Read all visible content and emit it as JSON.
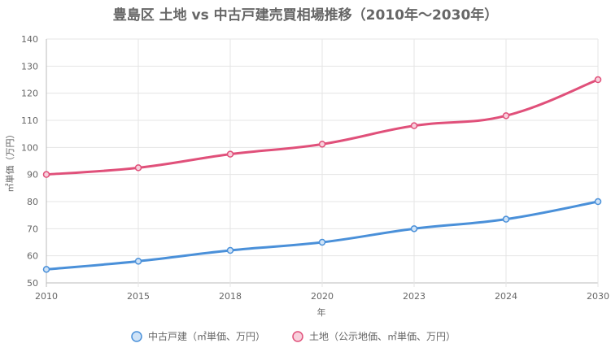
{
  "chart_data": {
    "type": "line",
    "title": "豊島区 土地 vs 中古戸建売買相場推移（2010年〜2030年）",
    "xlabel": "年",
    "ylabel": "㎡単価（万円）",
    "x": [
      "2010",
      "2015",
      "2018",
      "2020",
      "2023",
      "2024",
      "2030"
    ],
    "ylim": [
      50,
      140
    ],
    "yticks": [
      50,
      60,
      70,
      80,
      90,
      100,
      110,
      120,
      130,
      140
    ],
    "grid": true,
    "legend_position": "bottom",
    "series": [
      {
        "name": "中古戸建（㎡単価、万円）",
        "color": "#4a90d9",
        "fill": "#cfe3f7",
        "values": [
          55,
          58,
          62,
          65,
          70,
          73.5,
          80
        ]
      },
      {
        "name": "土地（公示地価、㎡単価、万円）",
        "color": "#e0507a",
        "fill": "#f8d0dc",
        "values": [
          90,
          92.5,
          97.5,
          101.2,
          108,
          111.7,
          125
        ]
      }
    ]
  }
}
